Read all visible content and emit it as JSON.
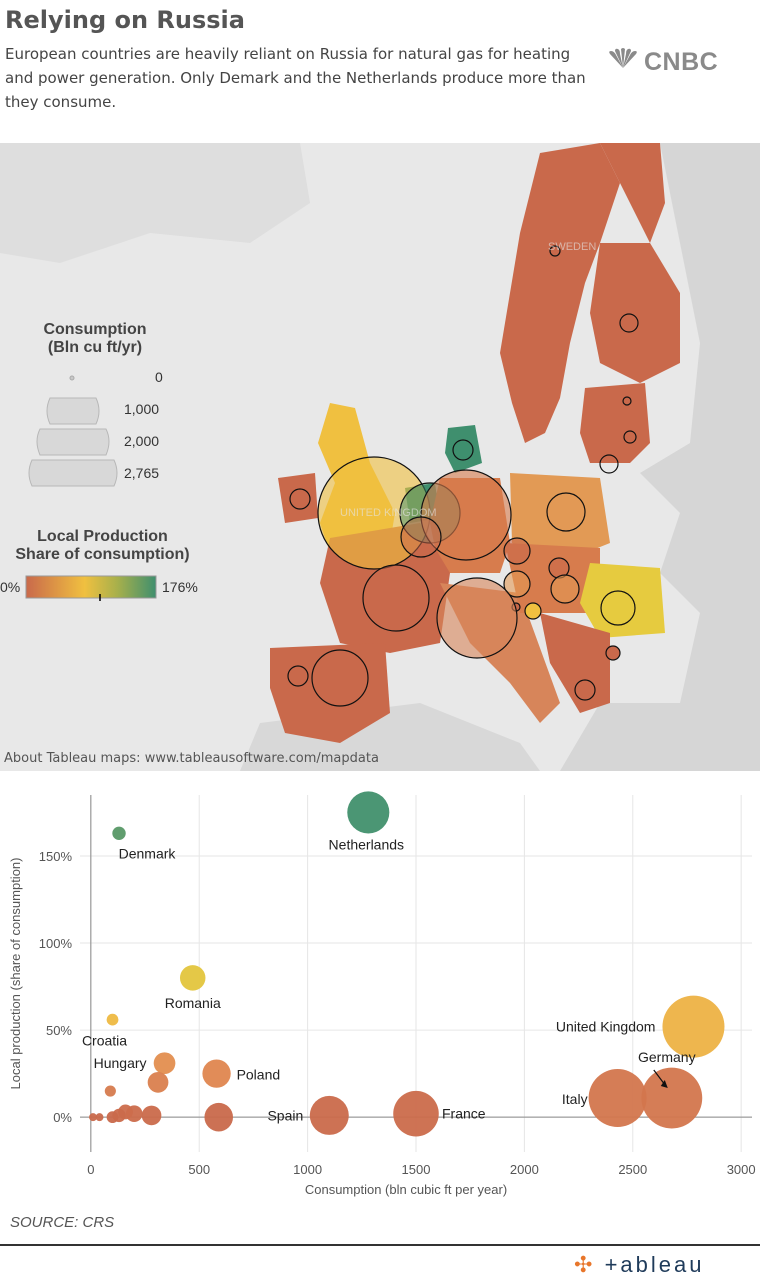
{
  "header": {
    "title": "Relying on Russia",
    "subtitle": "European countries are heavily reliant on Russia for natural gas for heating and power generation. Only Demark and the Netherlands produce more than they consume.",
    "logo_text": "CNBC"
  },
  "map": {
    "country_labels": [
      "SWEDEN",
      "UNITED KINGDOM"
    ],
    "credit": "About Tableau maps: www.tableausoftware.com/mapdata",
    "legend": {
      "size_title_1": "Consumption",
      "size_title_2": "(Bln cu ft/yr)",
      "size_values": [
        "0",
        "1,000",
        "2,000",
        "2,765"
      ],
      "color_title_1": "Local Production",
      "color_title_2": "Share of consumption)",
      "color_min": "0%",
      "color_max": "176%"
    },
    "colors": {
      "low": "#c9694b",
      "mid": "#f0c040",
      "high": "#3f8f6e",
      "land": "#d4d4d4",
      "sea": "#e8e8e8"
    }
  },
  "chart_data": {
    "type": "scatter",
    "xlabel": "Consumption (bln cubic ft per year)",
    "ylabel": "Local production (share of consumption)",
    "xlim": [
      -50,
      3050
    ],
    "ylim": [
      -20,
      185
    ],
    "xticks": [
      0,
      500,
      1000,
      1500,
      2000,
      2500,
      3000
    ],
    "yticks": [
      0,
      50,
      100,
      150
    ],
    "ytick_labels": [
      "0%",
      "50%",
      "100%",
      "150%"
    ],
    "points": [
      {
        "label": "Denmark",
        "x": 130,
        "y": 163
      },
      {
        "label": "Netherlands",
        "x": 1280,
        "y": 175
      },
      {
        "label": "Romania",
        "x": 470,
        "y": 80
      },
      {
        "label": "Croatia",
        "x": 100,
        "y": 56
      },
      {
        "label": "United Kingdom",
        "x": 2780,
        "y": 52
      },
      {
        "label": "Hungary",
        "x": 340,
        "y": 31
      },
      {
        "label": "Poland",
        "x": 580,
        "y": 25
      },
      {
        "label": "",
        "x": 310,
        "y": 20
      },
      {
        "label": "",
        "x": 90,
        "y": 15
      },
      {
        "label": "Germany",
        "x": 2680,
        "y": 11
      },
      {
        "label": "Italy",
        "x": 2430,
        "y": 11
      },
      {
        "label": "Spain",
        "x": 1100,
        "y": 1
      },
      {
        "label": "France",
        "x": 1500,
        "y": 2
      },
      {
        "label": "",
        "x": 590,
        "y": 0
      },
      {
        "label": "",
        "x": 280,
        "y": 1
      },
      {
        "label": "",
        "x": 200,
        "y": 2
      },
      {
        "label": "",
        "x": 160,
        "y": 3
      },
      {
        "label": "",
        "x": 130,
        "y": 1
      },
      {
        "label": "",
        "x": 100,
        "y": 0
      },
      {
        "label": "",
        "x": 40,
        "y": 0
      },
      {
        "label": "",
        "x": 10,
        "y": 0
      }
    ],
    "source": "SOURCE: CRS"
  },
  "footer": {
    "brand": "+ableau"
  }
}
